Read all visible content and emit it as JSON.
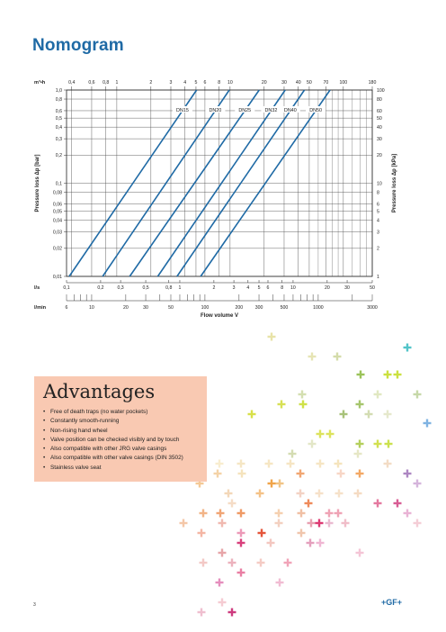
{
  "title": "Nomogram",
  "chart_data": {
    "type": "line",
    "y_axis_left": {
      "label": "Pressure loss Δp [bar]",
      "scale": "log",
      "range": [
        0.01,
        1.0
      ],
      "ticks": [
        "1,0",
        "0,8",
        "0,6",
        "0,5",
        "0,4",
        "0,3",
        "0,2",
        "0,1",
        "0,08",
        "0,06",
        "0,05",
        "0,04",
        "0,03",
        "0,02",
        "0,01"
      ],
      "tick_values": [
        1.0,
        0.8,
        0.6,
        0.5,
        0.4,
        0.3,
        0.2,
        0.1,
        0.08,
        0.06,
        0.05,
        0.04,
        0.03,
        0.02,
        0.01
      ]
    },
    "y_axis_right": {
      "label": "Pressure loss Δp [kPa]",
      "ticks": [
        "100",
        "80",
        "60",
        "50",
        "40",
        "30",
        "20",
        "10",
        "8",
        "6",
        "5",
        "4",
        "3",
        "2",
        "1"
      ]
    },
    "x_axis_top": {
      "unit": "m³•h",
      "ticks": [
        "0,4",
        "0,6",
        "0,8",
        "1",
        "2",
        "3",
        "4",
        "5",
        "6",
        "8",
        "10",
        "20",
        "30",
        "40",
        "50",
        "70",
        "100",
        "180"
      ]
    },
    "x_axis_mid": {
      "unit": "l/s",
      "ticks": [
        "0,1",
        "0,2",
        "0,3",
        "0,5",
        "0,8",
        "1",
        "2",
        "3",
        "4",
        "5",
        "6",
        "8",
        "10",
        "20",
        "30",
        "50"
      ]
    },
    "x_axis_bottom": {
      "unit": "l/min",
      "ticks": [
        "6",
        "10",
        "20",
        "30",
        "50",
        "100",
        "200",
        "300",
        "500",
        "1000",
        "3000"
      ]
    },
    "xlabel": "Flow volume V",
    "series": [
      {
        "name": "DN15",
        "x_m3h": [
          0.38,
          3.8
        ],
        "y_bar": [
          0.01,
          0.6
        ]
      },
      {
        "name": "DN20",
        "x_m3h": [
          0.75,
          7.4
        ],
        "y_bar": [
          0.01,
          0.6
        ]
      },
      {
        "name": "DN25",
        "x_m3h": [
          1.3,
          13.5
        ],
        "y_bar": [
          0.01,
          0.6
        ]
      },
      {
        "name": "DN32",
        "x_m3h": [
          2.3,
          23
        ],
        "y_bar": [
          0.01,
          0.6
        ]
      },
      {
        "name": "DN40",
        "x_m3h": [
          3.4,
          34
        ],
        "y_bar": [
          0.01,
          0.6
        ]
      },
      {
        "name": "DN50",
        "x_m3h": [
          5.5,
          57
        ],
        "y_bar": [
          0.01,
          0.6
        ]
      }
    ],
    "line_color": "#1f6aa5",
    "grid": true
  },
  "advantages": {
    "title": "Advantages",
    "items": [
      "Free of death traps (no water pockets)",
      "Constantly smooth-running",
      "Non-rising hand wheel",
      "Valve position can be checked visibly and by touch",
      "Also compatible with other JRG valve casings",
      "Also compatible with other valve casings (DIN 3502)",
      "Stainless valve seat"
    ]
  },
  "footer": {
    "page_number": "3",
    "logo": "+GF+"
  },
  "colors": {
    "accent": "#1f6aa5",
    "advantages_background": "#f9c9b2"
  }
}
